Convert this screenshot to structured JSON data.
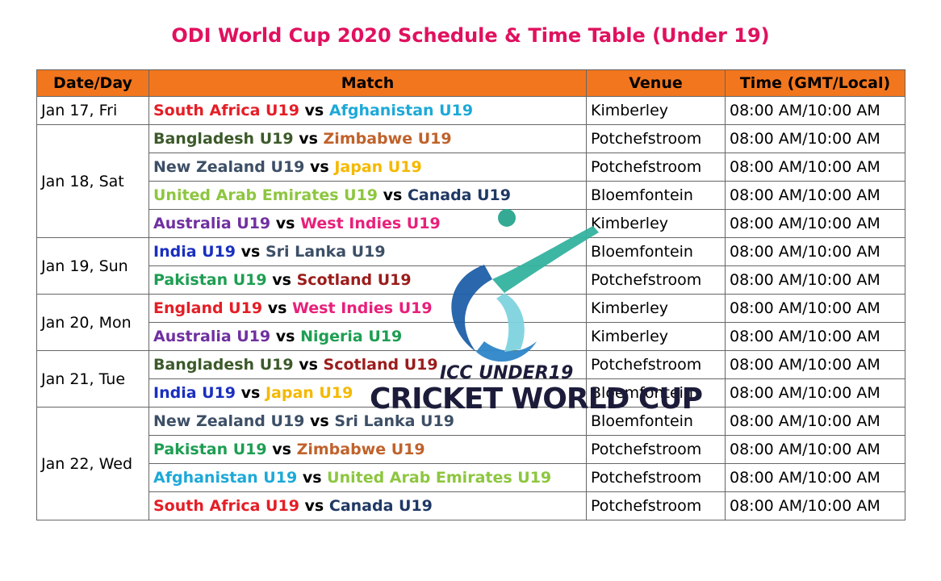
{
  "title": "ODI World Cup 2020 Schedule & Time Table (Under 19)",
  "colors": {
    "title": "#e0115f",
    "header_bg": "#f2761e",
    "border": "#666666"
  },
  "header": {
    "date": "Date/Day",
    "match": "Match",
    "venue": "Venue",
    "time": "Time (GMT/Local)"
  },
  "vs_label": "vs",
  "days": [
    {
      "date": "Jan 17, Fri",
      "matches": [
        {
          "team1": "South Africa U19",
          "color1": "#e41e26",
          "team2": "Afghanistan U19",
          "color2": "#1da9d8",
          "venue": "Kimberley",
          "time": "08:00 AM/10:00 AM"
        }
      ]
    },
    {
      "date": "Jan 18, Sat",
      "matches": [
        {
          "team1": "Bangladesh U19",
          "color1": "#3c5a2a",
          "team2": "Zimbabwe U19",
          "color2": "#c0622b",
          "venue": "Potchefstroom",
          "time": "08:00 AM/10:00 AM"
        },
        {
          "team1": "New Zealand U19",
          "color1": "#3d4f66",
          "team2": "Japan U19",
          "color2": "#f5b800",
          "venue": "Potchefstroom",
          "time": "08:00 AM/10:00 AM"
        },
        {
          "team1": "United Arab Emirates U19",
          "color1": "#8dc63f",
          "team2": "Canada U19",
          "color2": "#1f3864",
          "venue": "Bloemfontein",
          "time": "08:00 AM/10:00 AM"
        },
        {
          "team1": "Australia U19",
          "color1": "#7030a0",
          "team2": "West Indies U19",
          "color2": "#e8207a",
          "venue": "Kimberley",
          "time": "08:00 AM/10:00 AM"
        }
      ]
    },
    {
      "date": "Jan 19, Sun",
      "matches": [
        {
          "team1": "India U19",
          "color1": "#1a2fbf",
          "team2": "Sri Lanka U19",
          "color2": "#3d4f66",
          "venue": "Bloemfontein",
          "time": "08:00 AM/10:00 AM"
        },
        {
          "team1": "Pakistan U19",
          "color1": "#1e9e52",
          "team2": "Scotland U19",
          "color2": "#9b1c1c",
          "venue": "Potchefstroom",
          "time": "08:00 AM/10:00 AM"
        }
      ]
    },
    {
      "date": "Jan 20, Mon",
      "matches": [
        {
          "team1": "England U19",
          "color1": "#e41e26",
          "team2": "West Indies U19",
          "color2": "#e8207a",
          "venue": "Kimberley",
          "time": "08:00 AM/10:00 AM"
        },
        {
          "team1": "Australia U19",
          "color1": "#7030a0",
          "team2": "Nigeria U19",
          "color2": "#1e9e52",
          "venue": "Kimberley",
          "time": "08:00 AM/10:00 AM"
        }
      ]
    },
    {
      "date": "Jan 21, Tue",
      "matches": [
        {
          "team1": "Bangladesh U19",
          "color1": "#3c5a2a",
          "team2": "Scotland U19",
          "color2": "#9b1c1c",
          "venue": "Potchefstroom",
          "time": "08:00 AM/10:00 AM"
        },
        {
          "team1": "India U19",
          "color1": "#1a2fbf",
          "team2": "Japan U19",
          "color2": "#f5b800",
          "venue": "Bloemfontein",
          "time": "08:00 AM/10:00 AM"
        }
      ]
    },
    {
      "date": "Jan 22, Wed",
      "matches": [
        {
          "team1": "New Zealand U19",
          "color1": "#3d4f66",
          "team2": "Sri Lanka U19",
          "color2": "#3d4f66",
          "venue": "Bloemfontein",
          "time": "08:00 AM/10:00 AM"
        },
        {
          "team1": "Pakistan U19",
          "color1": "#1e9e52",
          "team2": "Zimbabwe U19",
          "color2": "#c0622b",
          "venue": "Potchefstroom",
          "time": "08:00 AM/10:00 AM"
        },
        {
          "team1": "Afghanistan U19",
          "color1": "#1da9d8",
          "team2": "United Arab Emirates U19",
          "color2": "#8dc63f",
          "venue": "Potchefstroom",
          "time": "08:00 AM/10:00 AM",
          "tall": true
        },
        {
          "team1": "South Africa U19",
          "color1": "#e41e26",
          "team2": "Canada U19",
          "color2": "#1f3864",
          "venue": "Potchefstroom",
          "time": "08:00 AM/10:00 AM"
        }
      ]
    }
  ],
  "logo": {
    "icon": "cricket-world-cup-logo-icon",
    "line1": "ICC UNDER19",
    "line2": "CRICKET WORLD CUP"
  }
}
